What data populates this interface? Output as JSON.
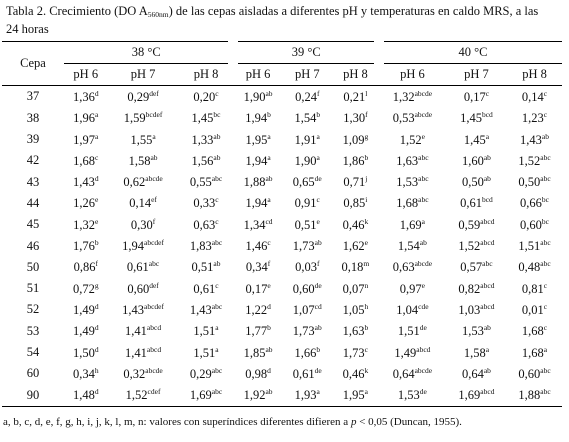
{
  "caption": {
    "before": "Tabla 2. Crecimiento (DO A",
    "sub": "560nm",
    "after": ") de las cepas aisladas a diferentes pH y temperaturas en caldo MRS, a las 24 horas"
  },
  "table": {
    "cepa_header": "Cepa",
    "temps": [
      "38 °C",
      "39 °C",
      "40 °C"
    ],
    "ph": [
      "pH 6",
      "pH 7",
      "pH 8",
      "pH 6",
      "pH 7",
      "pH 8",
      "pH 6",
      "pH 7",
      "pH 8"
    ],
    "rows": [
      {
        "cepa": "37",
        "cells": [
          {
            "v": "1,36",
            "s": "d"
          },
          {
            "v": "0,29",
            "s": "def"
          },
          {
            "v": "0,20",
            "s": "c"
          },
          {
            "v": "1,90",
            "s": "ab"
          },
          {
            "v": "0,24",
            "s": "f"
          },
          {
            "v": "0,21",
            "s": "l"
          },
          {
            "v": "1,32",
            "s": "abcde"
          },
          {
            "v": "0,17",
            "s": "c"
          },
          {
            "v": "0,14",
            "s": "c"
          }
        ]
      },
      {
        "cepa": "38",
        "cells": [
          {
            "v": "1,96",
            "s": "a"
          },
          {
            "v": "1,59",
            "s": "bcdef"
          },
          {
            "v": "1,45",
            "s": "bc"
          },
          {
            "v": "1,94",
            "s": "b"
          },
          {
            "v": "1,54",
            "s": "b"
          },
          {
            "v": "1,30",
            "s": "f"
          },
          {
            "v": "0,53",
            "s": "abcde"
          },
          {
            "v": "1,45",
            "s": "bcd"
          },
          {
            "v": "1,23",
            "s": "c"
          }
        ]
      },
      {
        "cepa": "39",
        "cells": [
          {
            "v": "1,97",
            "s": "a"
          },
          {
            "v": "1,55",
            "s": "a"
          },
          {
            "v": "1,33",
            "s": "ab"
          },
          {
            "v": "1,95",
            "s": "a"
          },
          {
            "v": "1,91",
            "s": "a"
          },
          {
            "v": "1,09",
            "s": "g"
          },
          {
            "v": "1,52",
            "s": "e"
          },
          {
            "v": "1,45",
            "s": "a"
          },
          {
            "v": "1,43",
            "s": "ab"
          }
        ]
      },
      {
        "cepa": "42",
        "cells": [
          {
            "v": "1,68",
            "s": "c"
          },
          {
            "v": "1,58",
            "s": "ab"
          },
          {
            "v": "1,56",
            "s": "ab"
          },
          {
            "v": "1,94",
            "s": "a"
          },
          {
            "v": "1,90",
            "s": "a"
          },
          {
            "v": "1,86",
            "s": "b"
          },
          {
            "v": "1,63",
            "s": "abc"
          },
          {
            "v": "1,60",
            "s": "ab"
          },
          {
            "v": "1,52",
            "s": "abc"
          }
        ]
      },
      {
        "cepa": "43",
        "cells": [
          {
            "v": "1,43",
            "s": "d"
          },
          {
            "v": "0,62",
            "s": "abcde"
          },
          {
            "v": "0,55",
            "s": "abc"
          },
          {
            "v": "1,88",
            "s": "ab"
          },
          {
            "v": "0,65",
            "s": "de"
          },
          {
            "v": "0,71",
            "s": "j"
          },
          {
            "v": "1,53",
            "s": "abc"
          },
          {
            "v": "0,50",
            "s": "ab"
          },
          {
            "v": "0,50",
            "s": "abc"
          }
        ]
      },
      {
        "cepa": "44",
        "cells": [
          {
            "v": "1,26",
            "s": "e"
          },
          {
            "v": "0,14",
            "s": "ef"
          },
          {
            "v": "0,33",
            "s": "c"
          },
          {
            "v": "1,94",
            "s": "a"
          },
          {
            "v": "0,91",
            "s": "c"
          },
          {
            "v": "0,85",
            "s": "i"
          },
          {
            "v": "1,68",
            "s": "abc"
          },
          {
            "v": "0,61",
            "s": "bcd"
          },
          {
            "v": "0,66",
            "s": "bc"
          }
        ]
      },
      {
        "cepa": "45",
        "cells": [
          {
            "v": "1,32",
            "s": "e"
          },
          {
            "v": "0,30",
            "s": "f"
          },
          {
            "v": "0,63",
            "s": "c"
          },
          {
            "v": "1,34",
            "s": "cd"
          },
          {
            "v": "0,51",
            "s": "e"
          },
          {
            "v": "0,46",
            "s": "k"
          },
          {
            "v": "1,69",
            "s": "a"
          },
          {
            "v": "0,59",
            "s": "abcd"
          },
          {
            "v": "0,60",
            "s": "bc"
          }
        ]
      },
      {
        "cepa": "46",
        "cells": [
          {
            "v": "1,76",
            "s": "b"
          },
          {
            "v": "1,94",
            "s": "abcdef"
          },
          {
            "v": "1,83",
            "s": "abc"
          },
          {
            "v": "1,46",
            "s": "c"
          },
          {
            "v": "1,73",
            "s": "ab"
          },
          {
            "v": "1,62",
            "s": "e"
          },
          {
            "v": "1,54",
            "s": "ab"
          },
          {
            "v": "1,52",
            "s": "abcd"
          },
          {
            "v": "1,51",
            "s": "abc"
          }
        ]
      },
      {
        "cepa": "50",
        "cells": [
          {
            "v": "0,86",
            "s": "f"
          },
          {
            "v": "0,61",
            "s": "abc"
          },
          {
            "v": "0,51",
            "s": "ab"
          },
          {
            "v": "0,34",
            "s": "f"
          },
          {
            "v": "0,03",
            "s": "f"
          },
          {
            "v": "0,18",
            "s": "m"
          },
          {
            "v": "0,63",
            "s": "abcde"
          },
          {
            "v": "0,57",
            "s": "abc"
          },
          {
            "v": "0,48",
            "s": "abc"
          }
        ]
      },
      {
        "cepa": "51",
        "cells": [
          {
            "v": "0,72",
            "s": "g"
          },
          {
            "v": "0,60",
            "s": "def"
          },
          {
            "v": "0,61",
            "s": "c"
          },
          {
            "v": "0,17",
            "s": "e"
          },
          {
            "v": "0,60",
            "s": "de"
          },
          {
            "v": "0,07",
            "s": "n"
          },
          {
            "v": "0,97",
            "s": "e"
          },
          {
            "v": "0,82",
            "s": "abcd"
          },
          {
            "v": "0,81",
            "s": "c"
          }
        ]
      },
      {
        "cepa": "52",
        "cells": [
          {
            "v": "1,49",
            "s": "d"
          },
          {
            "v": "1,43",
            "s": "abcdef"
          },
          {
            "v": "1,43",
            "s": "abc"
          },
          {
            "v": "1,22",
            "s": "d"
          },
          {
            "v": "1,07",
            "s": "cd"
          },
          {
            "v": "1,05",
            "s": "h"
          },
          {
            "v": "1,04",
            "s": "cde"
          },
          {
            "v": "1,03",
            "s": "abcd"
          },
          {
            "v": "0,01",
            "s": "c"
          }
        ]
      },
      {
        "cepa": "53",
        "cells": [
          {
            "v": "1,49",
            "s": "d"
          },
          {
            "v": "1,41",
            "s": "abcd"
          },
          {
            "v": "1,51",
            "s": "a"
          },
          {
            "v": "1,77",
            "s": "b"
          },
          {
            "v": "1,73",
            "s": "ab"
          },
          {
            "v": "1,63",
            "s": "b"
          },
          {
            "v": "1,51",
            "s": "de"
          },
          {
            "v": "1,53",
            "s": "ab"
          },
          {
            "v": "1,68",
            "s": "c"
          }
        ]
      },
      {
        "cepa": "54",
        "cells": [
          {
            "v": "1,50",
            "s": "d"
          },
          {
            "v": "1,41",
            "s": "abcd"
          },
          {
            "v": "1,51",
            "s": "a"
          },
          {
            "v": "1,85",
            "s": "ab"
          },
          {
            "v": "1,66",
            "s": "b"
          },
          {
            "v": "1,73",
            "s": "c"
          },
          {
            "v": "1,49",
            "s": "abcd"
          },
          {
            "v": "1,58",
            "s": "a"
          },
          {
            "v": "1,68",
            "s": "a"
          }
        ]
      },
      {
        "cepa": "60",
        "cells": [
          {
            "v": "0,34",
            "s": "h"
          },
          {
            "v": "0,32",
            "s": "abcde"
          },
          {
            "v": "0,29",
            "s": "abc"
          },
          {
            "v": "0,98",
            "s": "d"
          },
          {
            "v": "0,61",
            "s": "de"
          },
          {
            "v": "0,46",
            "s": "k"
          },
          {
            "v": "0,64",
            "s": "abcde"
          },
          {
            "v": "0,64",
            "s": "ab"
          },
          {
            "v": "0,60",
            "s": "abc"
          }
        ]
      },
      {
        "cepa": "90",
        "cells": [
          {
            "v": "1,48",
            "s": "d"
          },
          {
            "v": "1,52",
            "s": "cdef"
          },
          {
            "v": "1,69",
            "s": "abc"
          },
          {
            "v": "1,92",
            "s": "ab"
          },
          {
            "v": "1,93",
            "s": "a"
          },
          {
            "v": "1,95",
            "s": "a"
          },
          {
            "v": "1,53",
            "s": "de"
          },
          {
            "v": "1,69",
            "s": "abcd"
          },
          {
            "v": "1,88",
            "s": "abc"
          }
        ]
      }
    ]
  },
  "footnote": {
    "before": "a, b, c, d, e, f, g, h, i, j, k, l, m, n: valores con superíndices diferentes difieren a ",
    "p": "p",
    "after": " < 0,05 (Duncan, 1955)."
  }
}
